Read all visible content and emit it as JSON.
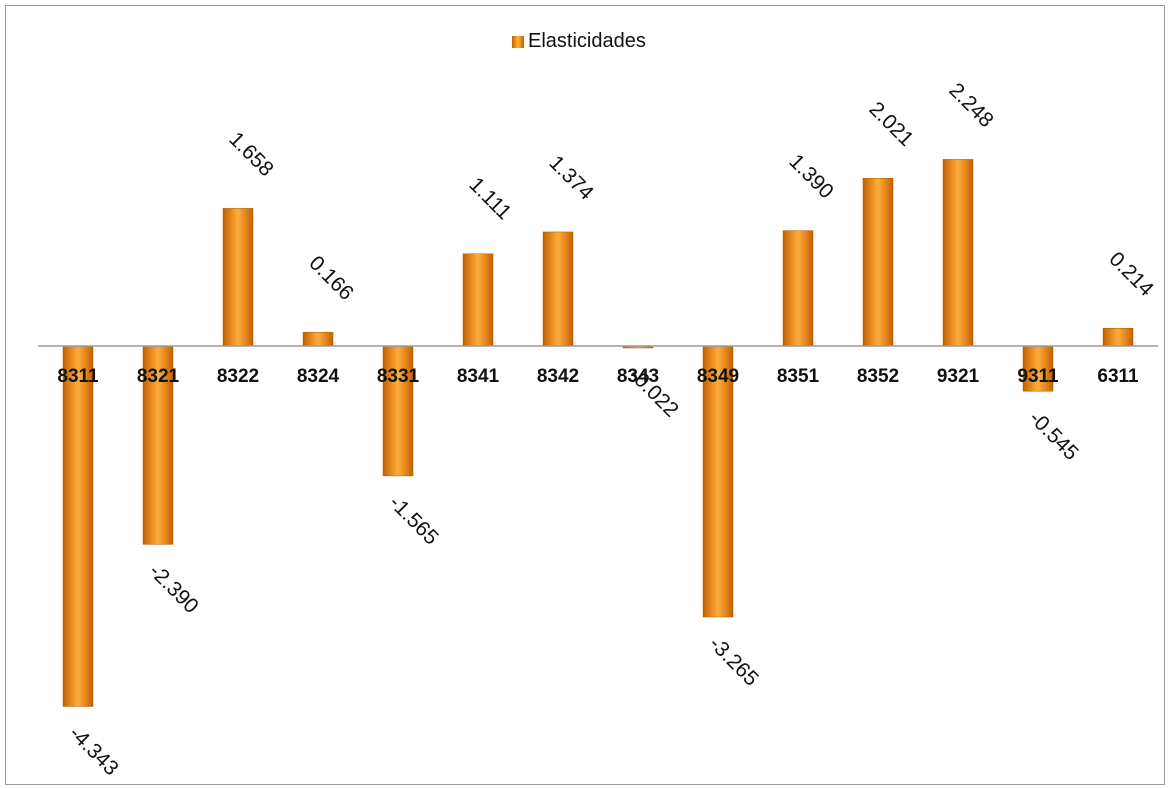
{
  "chart_data": {
    "type": "bar",
    "title": "",
    "xlabel": "",
    "ylabel": "",
    "legend": {
      "entries": [
        "Elasticidades"
      ],
      "placement": "top-center"
    },
    "categories": [
      "8311",
      "8321",
      "8322",
      "8324",
      "8331",
      "8341",
      "8342",
      "8343",
      "8349",
      "8351",
      "8352",
      "9321",
      "9311",
      "6311"
    ],
    "series": [
      {
        "name": "Elasticidades",
        "values": [
          -4.343,
          -2.39,
          1.658,
          0.166,
          -1.565,
          1.111,
          1.374,
          -0.022,
          -3.265,
          1.39,
          2.021,
          2.248,
          -0.545,
          0.214
        ],
        "labels": [
          "-4.343",
          "-2.390",
          "1.658",
          "0.166",
          "-1.565",
          "1.111",
          "1.374",
          "-0.022",
          "-3.265",
          "1.390",
          "2.021",
          "2.248",
          "-0.545",
          "0.214"
        ]
      }
    ],
    "ylim": [
      -5,
      4
    ],
    "grid": false,
    "bar_color": "#f29a28"
  }
}
